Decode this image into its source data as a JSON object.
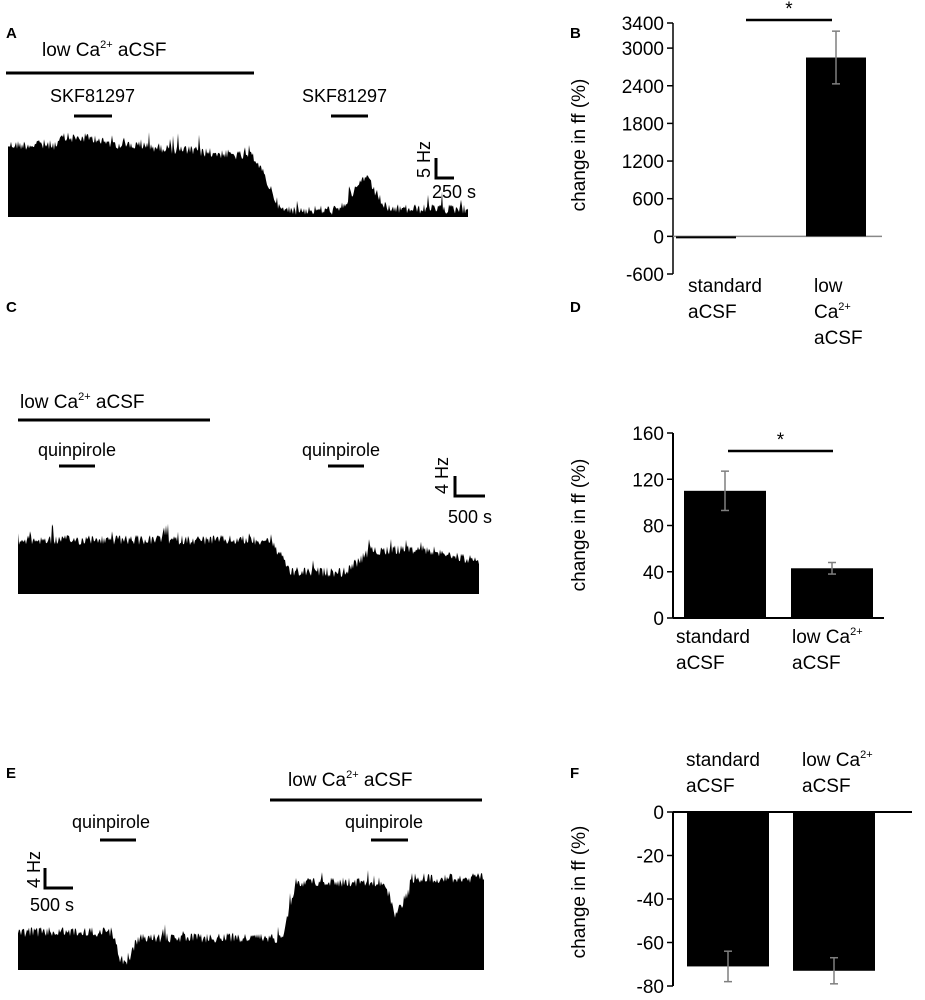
{
  "colors": {
    "ink": "#000000",
    "axis_zero": "#888888",
    "errorbar": "#7f7f7f"
  },
  "panel_letters": [
    "A",
    "B",
    "C",
    "D",
    "E",
    "F"
  ],
  "traces": {
    "A": {
      "bath_label": {
        "pre": "low Ca",
        "sup": "2+",
        "post": " aCSF"
      },
      "drug_labels": [
        "SKF81297",
        "SKF81297"
      ],
      "scale_y": "5 Hz",
      "scale_x": "250 s"
    },
    "C": {
      "bath_label": {
        "pre": "low Ca",
        "sup": "2+",
        "post": " aCSF"
      },
      "drug_labels": [
        "quinpirole",
        "quinpirole"
      ],
      "scale_y": "4 Hz",
      "scale_x": "500 s"
    },
    "E": {
      "bath_label": {
        "pre": "low Ca",
        "sup": "2+",
        "post": " aCSF"
      },
      "drug_labels": [
        "quinpirole",
        "quinpirole"
      ],
      "scale_y": "4 Hz",
      "scale_x": "500 s"
    }
  },
  "chart_data": [
    {
      "panel": "B",
      "type": "bar",
      "ylabel": "change in ff (%)",
      "ylim": [
        -600,
        3400
      ],
      "yticks": [
        -600,
        0,
        600,
        1200,
        1800,
        2400,
        3000,
        3400
      ],
      "categories": [
        {
          "lines": [
            {
              "text": "standard"
            },
            {
              "text": "aCSF"
            }
          ]
        },
        {
          "lines": [
            {
              "text": "low"
            },
            {
              "pre": "Ca",
              "sup": "2+"
            },
            {
              "text": "aCSF"
            }
          ]
        }
      ],
      "values": [
        -20,
        2850
      ],
      "errors": [
        10,
        420
      ],
      "significance": "*"
    },
    {
      "panel": "D",
      "type": "bar",
      "ylabel": "change in ff (%)",
      "ylim": [
        0,
        160
      ],
      "yticks": [
        0,
        40,
        80,
        120,
        160
      ],
      "categories": [
        {
          "lines": [
            {
              "text": "standard"
            },
            {
              "text": "aCSF"
            }
          ]
        },
        {
          "lines": [
            {
              "pre": "low Ca",
              "sup": "2+"
            },
            {
              "text": "aCSF"
            }
          ]
        }
      ],
      "values": [
        110,
        43
      ],
      "errors": [
        17,
        5
      ],
      "significance": "*"
    },
    {
      "panel": "F",
      "type": "bar",
      "ylabel": "change in ff (%)",
      "ylim": [
        -80,
        0
      ],
      "yticks": [
        -80,
        -60,
        -40,
        -20,
        0
      ],
      "categories": [
        {
          "lines": [
            {
              "text": "standard"
            },
            {
              "text": "aCSF"
            }
          ]
        },
        {
          "lines": [
            {
              "pre": "low Ca",
              "sup": "2+"
            },
            {
              "text": "aCSF"
            }
          ]
        }
      ],
      "values": [
        -71,
        -73
      ],
      "errors": [
        7,
        6
      ]
    }
  ]
}
